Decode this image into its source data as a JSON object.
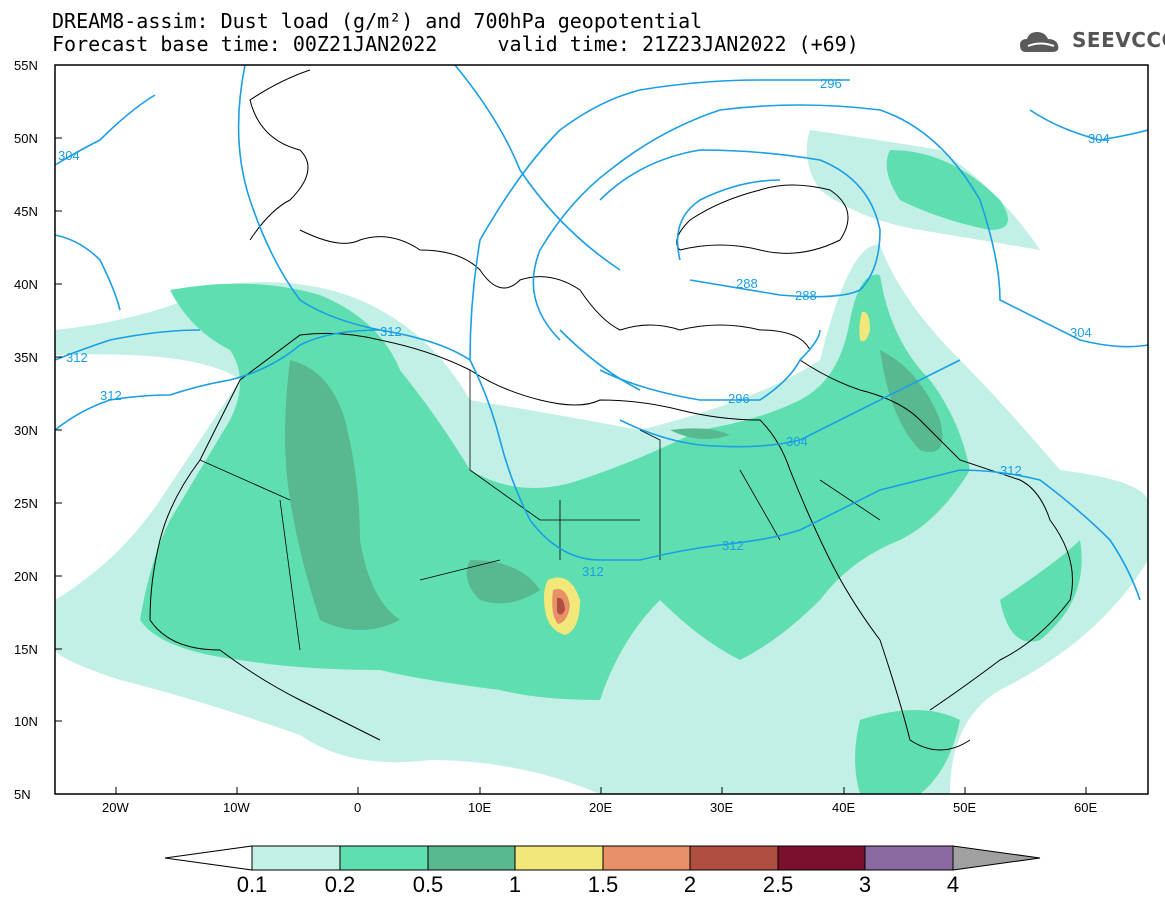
{
  "header": {
    "line1": "DREAM8-assim: Dust load (g/m²) and 700hPa geopotential",
    "line2": "Forecast base time: 00Z21JAN2022     valid time: 21Z23JAN2022 (+69)",
    "logo": "SEEVCCC"
  },
  "axes": {
    "lat_labels": [
      "55N",
      "50N",
      "45N",
      "40N",
      "35N",
      "30N",
      "25N",
      "20N",
      "15N",
      "10N",
      "5N"
    ],
    "lon_labels": [
      "20W",
      "10W",
      "0",
      "10E",
      "20E",
      "30E",
      "40E",
      "50E",
      "60E"
    ]
  },
  "contours": {
    "color": "#1a9ee6",
    "labels": [
      "296",
      "304",
      "304",
      "312",
      "312",
      "288",
      "288",
      "312",
      "296",
      "304",
      "312",
      "312",
      "312",
      "304"
    ]
  },
  "colorbar": {
    "levels": [
      "0.1",
      "0.2",
      "0.5",
      "1",
      "1.5",
      "2",
      "2.5",
      "3",
      "4"
    ],
    "colors": [
      "#c2f0e6",
      "#5fdfb0",
      "#58b890",
      "#f2e87a",
      "#e89068",
      "#b04e42",
      "#7a0f2e",
      "#8a6aa0"
    ],
    "under": "#ffffff",
    "over": "#a0a0a0"
  },
  "chart_data": {
    "type": "heatmap",
    "title": "DREAM8-assim: Dust load (g/m²) and 700hPa geopotential",
    "xlabel": "",
    "ylabel": "",
    "xlim": [
      -25,
      65
    ],
    "ylim": [
      5,
      55
    ],
    "units": "g/m²",
    "contour_levels_dam": [
      288,
      296,
      304,
      312
    ]
  }
}
